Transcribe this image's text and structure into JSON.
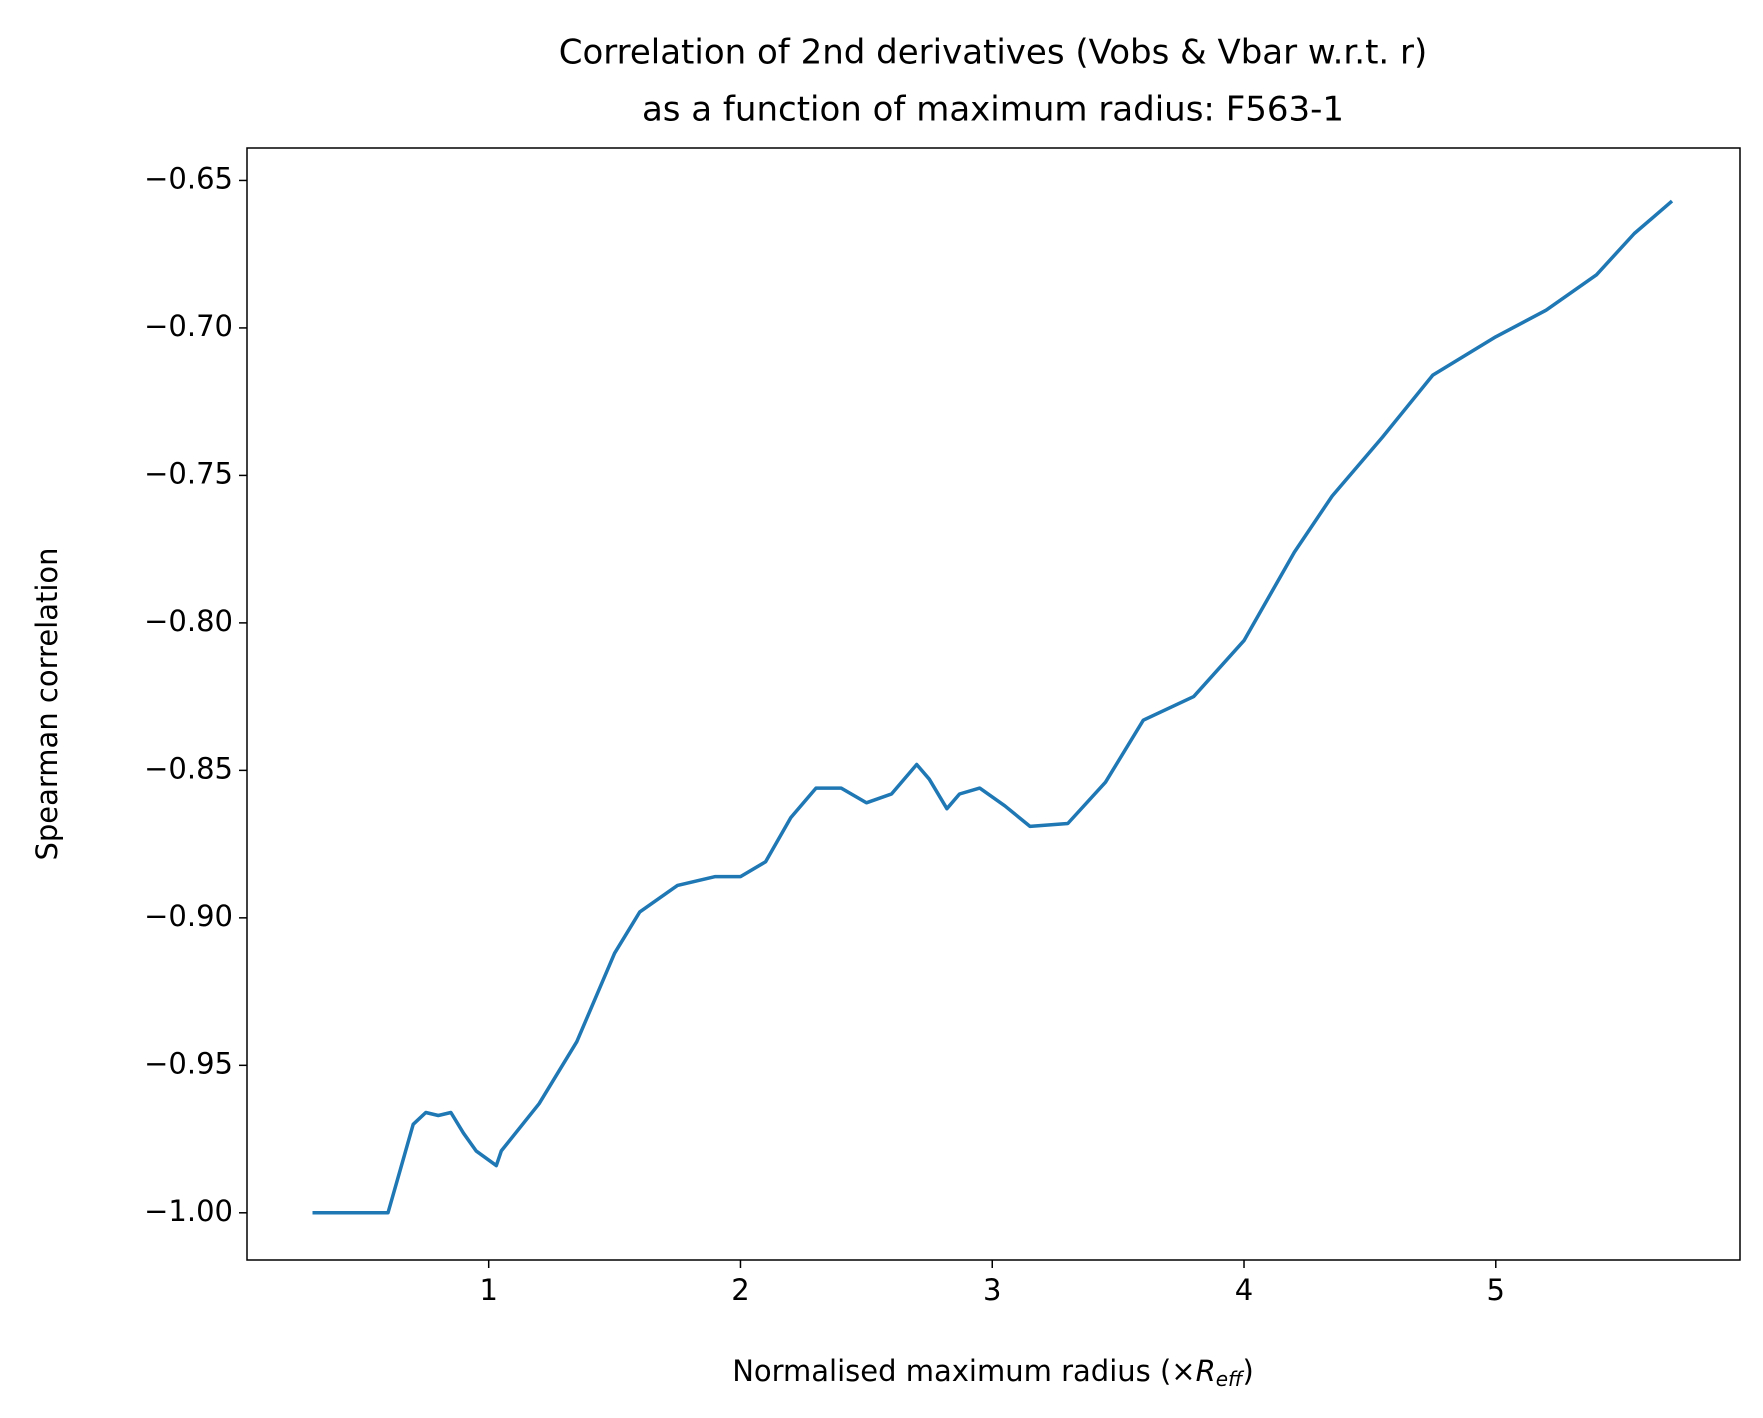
{
  "chart_data": {
    "type": "line",
    "title": [
      "Correlation of 2nd derivatives (Vobs & Vbar w.r.t. r)",
      "as a function of maximum radius: F563-1"
    ],
    "xlabel": {
      "text": "Normalised maximum radius (×",
      "symbol": "R",
      "subscript": "eff",
      "close": ")"
    },
    "ylabel": "Spearman correlation",
    "color": "#1f77b4",
    "x": [
      0.3,
      0.6,
      0.65,
      0.7,
      0.75,
      0.8,
      0.85,
      0.9,
      0.95,
      1.03,
      1.05,
      1.2,
      1.35,
      1.5,
      1.6,
      1.75,
      1.9,
      2.0,
      2.1,
      2.2,
      2.3,
      2.4,
      2.5,
      2.6,
      2.7,
      2.75,
      2.82,
      2.87,
      2.95,
      3.05,
      3.15,
      3.3,
      3.45,
      3.6,
      3.8,
      4.0,
      4.2,
      4.35,
      4.55,
      4.75,
      5.0,
      5.2,
      5.4,
      5.55,
      5.7
    ],
    "values": [
      -1.0,
      -1.0,
      -0.985,
      -0.97,
      -0.966,
      -0.967,
      -0.966,
      -0.973,
      -0.979,
      -0.984,
      -0.979,
      -0.963,
      -0.942,
      -0.912,
      -0.898,
      -0.889,
      -0.886,
      -0.886,
      -0.881,
      -0.866,
      -0.856,
      -0.856,
      -0.861,
      -0.858,
      -0.848,
      -0.853,
      -0.863,
      -0.858,
      -0.856,
      -0.862,
      -0.869,
      -0.868,
      -0.854,
      -0.833,
      -0.825,
      -0.806,
      -0.776,
      -0.757,
      -0.737,
      -0.716,
      -0.703,
      -0.694,
      -0.682,
      -0.668,
      -0.657
    ],
    "xlim": [
      0.04,
      5.97
    ],
    "ylim": [
      -1.016,
      -0.639
    ],
    "xticks": [
      1,
      2,
      3,
      4,
      5
    ],
    "yticks": [
      {
        "value": -0.65,
        "label": "−0.65"
      },
      {
        "value": -0.7,
        "label": "−0.70"
      },
      {
        "value": -0.75,
        "label": "−0.75"
      },
      {
        "value": -0.8,
        "label": "−0.80"
      },
      {
        "value": -0.85,
        "label": "−0.85"
      },
      {
        "value": -0.9,
        "label": "−0.90"
      },
      {
        "value": -0.95,
        "label": "−0.95"
      },
      {
        "value": -1.0,
        "label": "−1.00"
      }
    ]
  }
}
